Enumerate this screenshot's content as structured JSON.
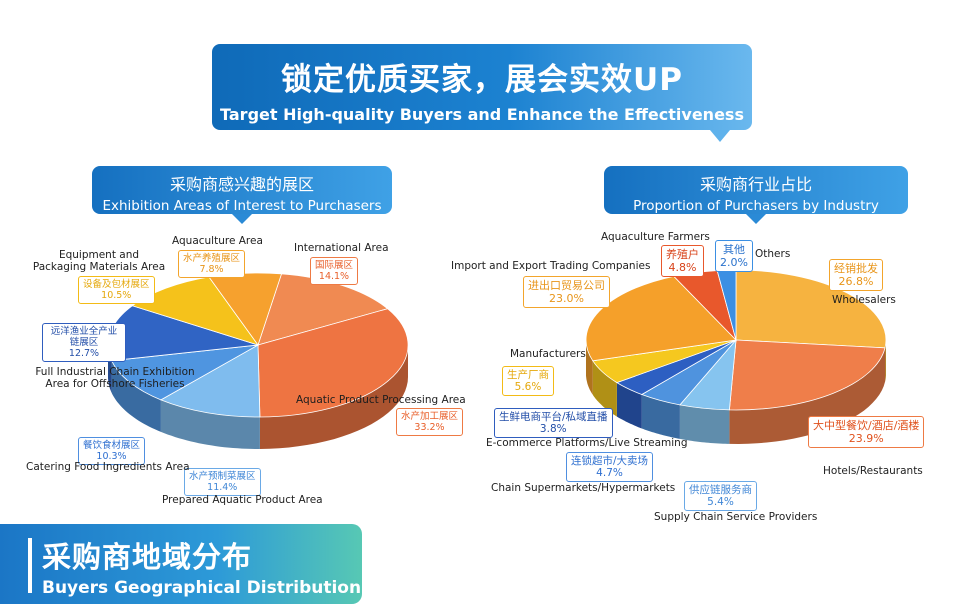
{
  "header": {
    "title_cn": "锁定优质买家，展会实效UP",
    "title_en": "Target High-quality Buyers and Enhance the Effectiveness"
  },
  "left_panel": {
    "title_cn": "采购商感兴趣的展区",
    "title_en": "Exhibition Areas of Interest to Purchasers"
  },
  "right_panel": {
    "title_cn": "采购商行业占比",
    "title_en": "Proportion of Purchasers by Industry"
  },
  "footer": {
    "title_cn": "采购商地域分布",
    "title_en": "Buyers Geographical Distribution"
  },
  "chart_data": [
    {
      "type": "pie",
      "title": "采购商感兴趣的展区",
      "slices": [
        {
          "label_en": "International Area",
          "label_cn": "国际展区",
          "value": 14.1,
          "value_text": "14.1%",
          "color": "#f08a52"
        },
        {
          "label_en": "Aquatic Product Processing Area",
          "label_cn": "水产加工展区",
          "value": 33.2,
          "value_text": "33.2%",
          "color": "#ee7442"
        },
        {
          "label_en": "Prepared Aquatic Product Area",
          "label_cn": "水产预制菜展区",
          "value": 11.4,
          "value_text": "11.4%",
          "color": "#7fbcee"
        },
        {
          "label_en": "Catering Food Ingredients Area",
          "label_cn": "餐饮食材展区",
          "value": 10.3,
          "value_text": "10.3%",
          "color": "#4f95e0"
        },
        {
          "label_en": "Full Industrial Chain Exhibition Area for Offshore Fisheries",
          "label_cn": "远洋渔业全产业链展区",
          "value": 12.7,
          "value_text": "12.7%",
          "color": "#3064c4"
        },
        {
          "label_en": "Equipment and Packaging Materials Area",
          "label_cn": "设备及包材展区",
          "value": 10.5,
          "value_text": "10.5%",
          "color": "#f5c21b"
        },
        {
          "label_en": "Aquaculture Area",
          "label_cn": "水产养殖展区",
          "value": 7.8,
          "value_text": "7.8%",
          "color": "#f6a12e"
        }
      ]
    },
    {
      "type": "pie",
      "title": "采购商行业占比",
      "slices": [
        {
          "label_en": "Wholesalers",
          "label_cn": "经销批发",
          "value": 26.8,
          "value_text": "26.8%",
          "color": "#f6b340"
        },
        {
          "label_en": "Hotels/Restaurants",
          "label_cn": "大中型餐饮/酒店/酒楼",
          "value": 23.9,
          "value_text": "23.9%",
          "color": "#ef7e4a"
        },
        {
          "label_en": "Supply Chain Service Providers",
          "label_cn": "供应链服务商",
          "value": 5.4,
          "value_text": "5.4%",
          "color": "#86c4ef"
        },
        {
          "label_en": "Chain Supermarkets/Hypermarkets",
          "label_cn": "连锁超市/大卖场",
          "value": 4.7,
          "value_text": "4.7%",
          "color": "#4f93de"
        },
        {
          "label_en": "E-commerce Platforms/Live Streaming",
          "label_cn": "生鲜电商平台/私域直播",
          "value": 3.8,
          "value_text": "3.8%",
          "color": "#2d5fc2"
        },
        {
          "label_en": "Manufacturers",
          "label_cn": "生产厂商",
          "value": 5.6,
          "value_text": "5.6%",
          "color": "#f5c81f"
        },
        {
          "label_en": "Import and Export Trading Companies",
          "label_cn": "进出口贸易公司",
          "value": 23.0,
          "value_text": "23.0%",
          "color": "#f5a02a"
        },
        {
          "label_en": "Aquaculture Farmers",
          "label_cn": "养殖户",
          "value": 4.8,
          "value_text": "4.8%",
          "color": "#e8582c"
        },
        {
          "label_en": "Others",
          "label_cn": "其他",
          "value": 2.0,
          "value_text": "2.0%",
          "color": "#3b8fe3"
        }
      ]
    }
  ]
}
